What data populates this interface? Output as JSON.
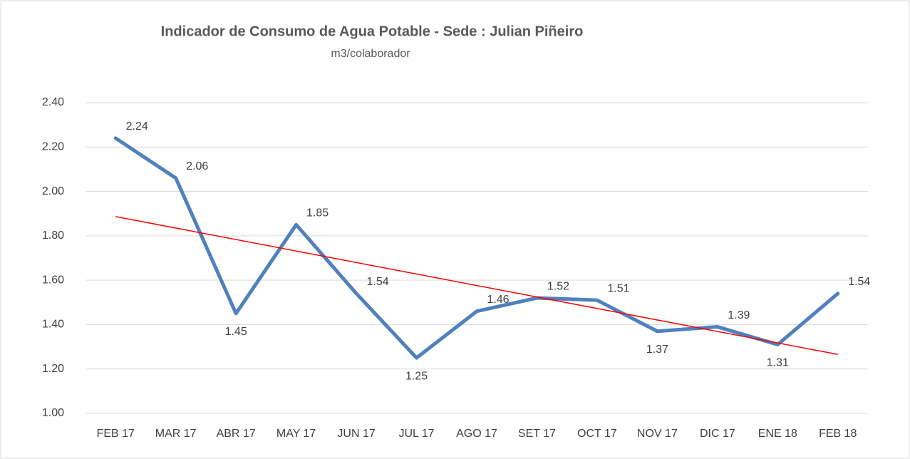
{
  "chart_data": {
    "type": "line",
    "title": "Indicador de Consumo de Agua Potable - Sede : Julian Piñeiro",
    "subtitle": "m3/colaborador",
    "categories": [
      "FEB 17",
      "MAR 17",
      "ABR 17",
      "MAY 17",
      "JUN 17",
      "JUL 17",
      "AGO 17",
      "SET 17",
      "OCT 17",
      "NOV 17",
      "DIC 17",
      "ENE 18",
      "FEB 18"
    ],
    "series": [
      {
        "color": "#4f81bd",
        "values": [
          2.24,
          2.06,
          1.45,
          1.85,
          1.54,
          1.25,
          1.46,
          1.52,
          1.51,
          1.37,
          1.39,
          1.31,
          1.54
        ]
      }
    ],
    "trendline": {
      "type": "linear",
      "color": "#ff0000"
    },
    "ylim": [
      1.0,
      2.4
    ],
    "yticks": [
      {
        "value": 1.0,
        "label": "1.00"
      },
      {
        "value": 1.2,
        "label": "1.20"
      },
      {
        "value": 1.4,
        "label": "1.40"
      },
      {
        "value": 1.6,
        "label": "1.60"
      },
      {
        "value": 1.8,
        "label": "1.80"
      },
      {
        "value": 2.0,
        "label": "2.00"
      },
      {
        "value": 2.2,
        "label": "2.20"
      },
      {
        "value": 2.4,
        "label": "2.40"
      }
    ],
    "grid": true
  }
}
